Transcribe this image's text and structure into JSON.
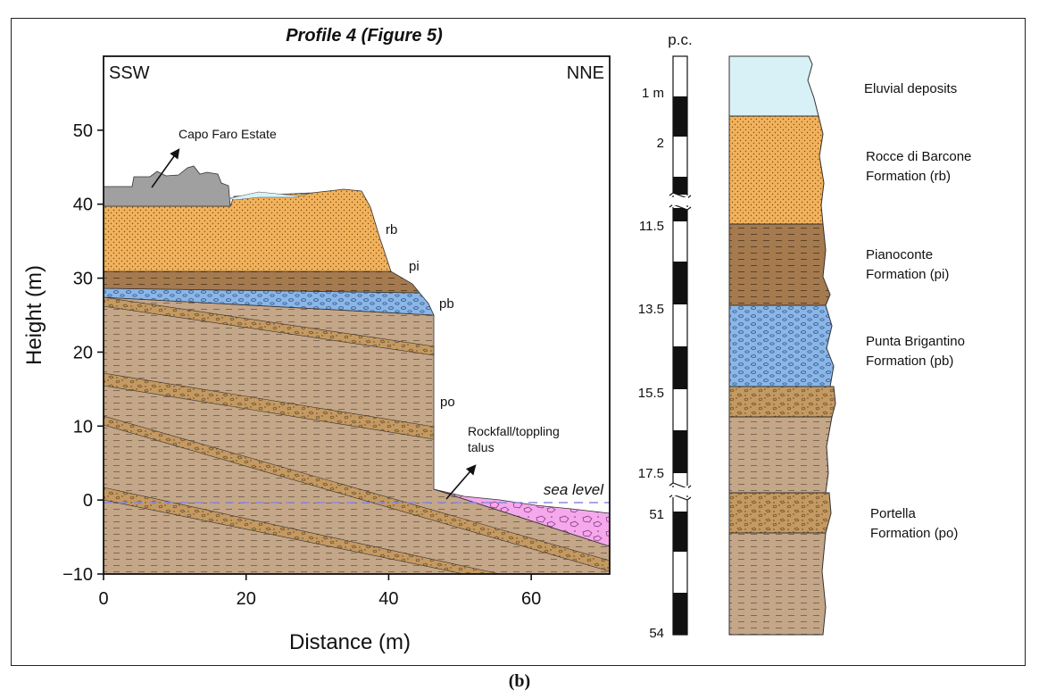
{
  "figure": {
    "title": "Profile 4 (Figure 5)",
    "title_color": "#e01010",
    "caption": "(b)"
  },
  "profile": {
    "xlabel": "Distance (m)",
    "ylabel": "Height (m)",
    "x_ticks": [
      "0",
      "20",
      "40",
      "60"
    ],
    "y_ticks": [
      "−10",
      "0",
      "10",
      "20",
      "30",
      "40",
      "50"
    ],
    "xlim": [
      0,
      71
    ],
    "ylim": [
      -10,
      60
    ],
    "direction_left": "SSW",
    "direction_right": "NNE",
    "sea_level_label": "sea level",
    "annotations": {
      "capo_faro": "Capo Faro Estate",
      "rockfall_1": "Rockfall/toppling",
      "rockfall_2": "talus"
    },
    "unit_labels": {
      "rb": "rb",
      "pi": "pi",
      "pb": "pb",
      "po": "po"
    }
  },
  "column": {
    "header": "p.c.",
    "depth_labels": [
      "1 m",
      "2",
      "11.5",
      "13.5",
      "15.5",
      "17.5",
      "51",
      "54"
    ],
    "units": [
      {
        "label": "Eluvial deposits",
        "color": "#d8f1f6"
      },
      {
        "label": "Rocce di Barcone\nFormation (rb)",
        "color": "#f2b25c"
      },
      {
        "label": "Pianoconte\nFormation (pi)",
        "color": "#a57a4e"
      },
      {
        "label": "Punta Brigantino\nFormation (pb)",
        "color": "#8ab6e8"
      },
      {
        "label": "",
        "color": "#c49a62"
      },
      {
        "label": "",
        "color": "#c4a688"
      },
      {
        "label": "Portella\nFormation (po)",
        "color": "#c49a62"
      },
      {
        "label": "",
        "color": "#c4a688"
      }
    ]
  },
  "colors": {
    "eluvial": "#d8f1f6",
    "rb": "#f2b25c",
    "pi": "#a57a4e",
    "pb": "#8ab6e8",
    "po": "#c4a688",
    "po_band": "#c49a62",
    "talus": "#f5a8ec",
    "building": "#a0a0a0",
    "sea_level": "#8a8ae0"
  }
}
